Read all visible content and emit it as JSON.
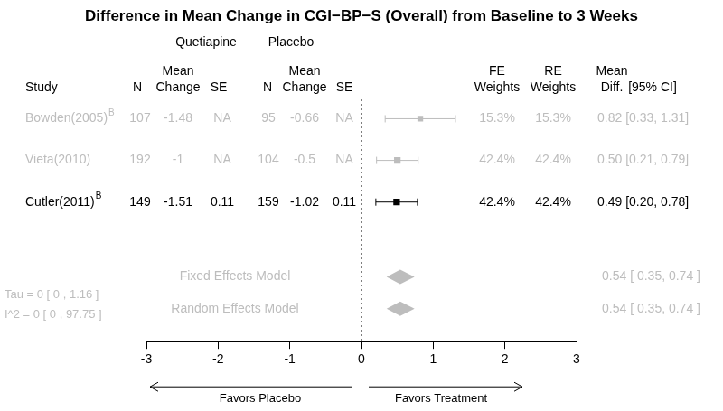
{
  "chart_data": {
    "type": "forest",
    "title": "Difference in Mean Change in CGI−BP−S (Overall) from Baseline to 3 Weeks",
    "group_headers": [
      "Quetiapine",
      "Placebo"
    ],
    "column_headers": [
      [
        "Study"
      ],
      [
        "N"
      ],
      [
        "Mean",
        "Change"
      ],
      [
        "SE"
      ],
      [
        "N"
      ],
      [
        "Mean",
        "Change"
      ],
      [
        "SE"
      ],
      [
        "FE",
        "Weights"
      ],
      [
        "RE",
        "Weights"
      ],
      [
        "Mean",
        "Diff."
      ],
      [
        "[95% CI]"
      ]
    ],
    "studies": [
      {
        "name": "Bowden(2005)",
        "superscript": "B",
        "color": "#bdbdbd",
        "treatment": {
          "n": 107,
          "mean_change": -1.48,
          "se": "NA"
        },
        "placebo": {
          "n": 95,
          "mean_change": -0.66,
          "se": "NA"
        },
        "fe_weight": {
          "value": 15.3,
          "label": "15.3%"
        },
        "re_weight": {
          "value": 15.3,
          "label": "15.3%"
        },
        "mean_diff": 0.82,
        "ci": [
          0.33,
          1.31
        ],
        "mean_diff_label": "0.82 [0.33, 1.31]"
      },
      {
        "name": "Vieta(2010)",
        "color": "#bdbdbd",
        "treatment": {
          "n": 192,
          "mean_change": -1,
          "se": "NA"
        },
        "placebo": {
          "n": 104,
          "mean_change": -0.5,
          "se": "NA"
        },
        "fe_weight": {
          "value": 42.4,
          "label": "42.4%"
        },
        "re_weight": {
          "value": 42.4,
          "label": "42.4%"
        },
        "mean_diff": 0.5,
        "ci": [
          0.21,
          0.79
        ],
        "mean_diff_label": "0.50 [0.21, 0.79]"
      },
      {
        "name": "Cutler(2011)",
        "superscript": "B",
        "color": "#000000",
        "treatment": {
          "n": 149,
          "mean_change": -1.51,
          "se": 0.11
        },
        "placebo": {
          "n": 159,
          "mean_change": -1.02,
          "se": 0.11
        },
        "fe_weight": {
          "value": 42.4,
          "label": "42.4%"
        },
        "re_weight": {
          "value": 42.4,
          "label": "42.4%"
        },
        "mean_diff": 0.49,
        "ci": [
          0.2,
          0.78
        ],
        "mean_diff_label": "0.49 [0.20, 0.78]"
      }
    ],
    "models": [
      {
        "name": "Fixed Effects Model",
        "color": "#bdbdbd",
        "mean_diff": 0.54,
        "ci": [
          0.35,
          0.74
        ],
        "mean_diff_label": "0.54 [ 0.35, 0.74 ]"
      },
      {
        "name": "Random Effects Model",
        "color": "#bdbdbd",
        "mean_diff": 0.54,
        "ci": [
          0.35,
          0.74
        ],
        "mean_diff_label": "0.54 [ 0.35, 0.74 ]"
      }
    ],
    "heterogeneity": {
      "color": "#bdbdbd",
      "lines": [
        "Tau = 0 [ 0 , 1.16 ]",
        "I^2 = 0 [ 0 , 97.75 ]"
      ]
    },
    "reference_line": 0,
    "xlim": [
      -3,
      3
    ],
    "xticks": [
      -3,
      -2,
      -1,
      0,
      1,
      2,
      3
    ],
    "arrow_labels": [
      "Favors Placebo",
      "Favors Treatment"
    ],
    "grid": false
  }
}
